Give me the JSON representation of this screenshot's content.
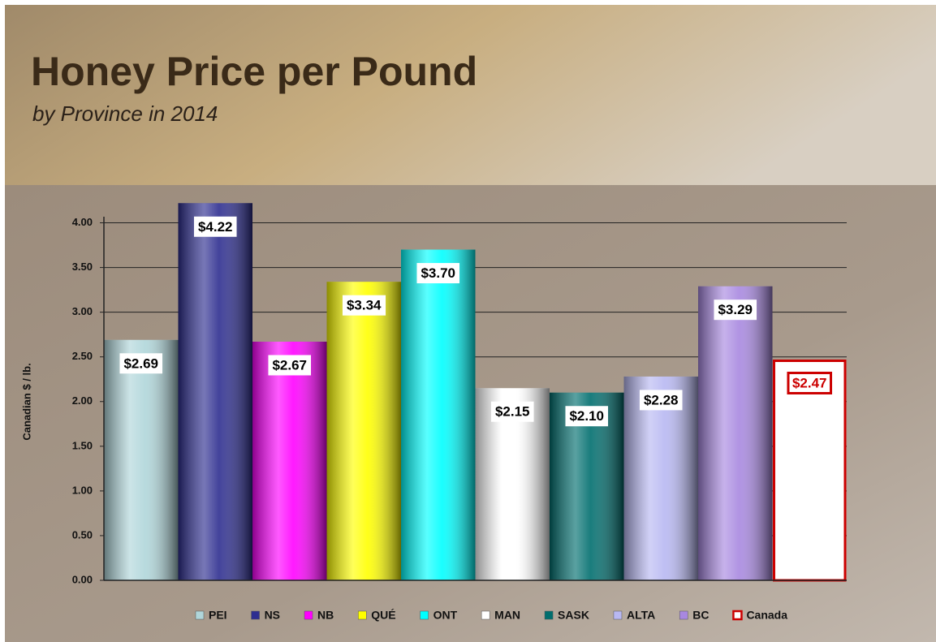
{
  "chart_data": {
    "type": "bar",
    "title": "Honey Price per Pound",
    "subtitle": "by Province in 2014",
    "y_label": "Canadian $ / lb.",
    "categories": [
      "PEI",
      "NS",
      "NB",
      "QUÉ",
      "ONT",
      "MAN",
      "SASK",
      "ALTA",
      "BC",
      "Canada"
    ],
    "values": [
      2.69,
      4.22,
      2.67,
      3.34,
      3.7,
      2.15,
      2.1,
      2.28,
      3.29,
      2.47
    ],
    "value_labels": [
      "$2.69",
      "$4.22",
      "$2.67",
      "$3.34",
      "$3.70",
      "$2.15",
      "$2.10",
      "$2.28",
      "$3.29",
      "$2.47"
    ],
    "colors": [
      "#b0d6da",
      "#2e2e90",
      "#ff00ff",
      "#ffff00",
      "#00ffff",
      "#ffffff",
      "#006e6e",
      "#b8b8f2",
      "#a888e0",
      "#ffffff"
    ],
    "highlight_color": "#cc0000",
    "ylim": [
      0,
      4.25
    ],
    "yticks": [
      {
        "value": 0,
        "label": "0.00"
      },
      {
        "value": 0.5,
        "label": "0.50"
      },
      {
        "value": 1,
        "label": "1.00"
      },
      {
        "value": 1.5,
        "label": "1.50"
      },
      {
        "value": 2,
        "label": "2.00"
      },
      {
        "value": 2.5,
        "label": "2.50"
      },
      {
        "value": 3,
        "label": "3.00"
      },
      {
        "value": 3.5,
        "label": "3.50"
      },
      {
        "value": 4,
        "label": "4.00"
      }
    ],
    "grid": true,
    "legend": "bottom"
  }
}
